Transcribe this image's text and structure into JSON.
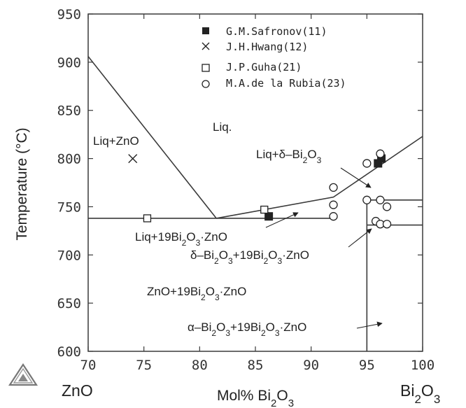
{
  "chart_data": {
    "type": "scatter",
    "title": "",
    "xlabel": "Mol% Bi2O3",
    "ylabel": "Temperature (°C)",
    "xlim": [
      70,
      100
    ],
    "ylim": [
      600,
      950
    ],
    "x_ticks": [
      "70",
      "75",
      "80",
      "85",
      "90",
      "95",
      "100"
    ],
    "y_ticks": [
      "600",
      "650",
      "700",
      "750",
      "800",
      "850",
      "900",
      "950"
    ],
    "components": {
      "left": "ZnO",
      "right": "Bi2O3"
    },
    "grid": false,
    "legend_position": "top-right",
    "series": [
      {
        "name": "G.M.Safronov(11)",
        "marker": "filled-square",
        "points": [
          [
            86.2,
            740
          ],
          [
            96.0,
            795
          ],
          [
            96.3,
            800
          ]
        ]
      },
      {
        "name": "J.H.Hwang(12)",
        "marker": "x",
        "points": [
          [
            74.0,
            800
          ]
        ]
      },
      {
        "name": "J.P.Guha(21)",
        "marker": "open-square",
        "points": [
          [
            75.3,
            738
          ],
          [
            85.8,
            747
          ]
        ]
      },
      {
        "name": "M.A.de la Rubia(23)",
        "marker": "open-circle",
        "points": [
          [
            92,
            770
          ],
          [
            92,
            752
          ],
          [
            92,
            740
          ],
          [
            95,
            795
          ],
          [
            96.2,
            805
          ],
          [
            95,
            757
          ],
          [
            96.2,
            757
          ],
          [
            96.8,
            750
          ],
          [
            95.8,
            735
          ],
          [
            96.2,
            732
          ],
          [
            96.8,
            732
          ]
        ]
      }
    ],
    "boundaries": [
      {
        "name": "liquidus-zno",
        "points": [
          [
            70,
            906
          ],
          [
            81.5,
            738
          ]
        ]
      },
      {
        "name": "liquidus-bi2o3",
        "points": [
          [
            81.5,
            738
          ],
          [
            92,
            760
          ],
          [
            100,
            823
          ]
        ]
      },
      {
        "name": "eutectic-line",
        "points": [
          [
            70,
            738
          ],
          [
            92.2,
            738
          ]
        ]
      },
      {
        "name": "delta-solvus-upper",
        "points": [
          [
            95,
            757
          ],
          [
            100,
            757
          ]
        ]
      },
      {
        "name": "alpha-delta-transition",
        "points": [
          [
            95,
            731
          ],
          [
            100,
            731
          ]
        ]
      },
      {
        "name": "compound-line",
        "points": [
          [
            95,
            600
          ],
          [
            95,
            757
          ]
        ]
      }
    ],
    "regions": [
      {
        "name": "liq",
        "label": "Liq."
      },
      {
        "name": "liq-zno",
        "label": "Liq+ZnO"
      },
      {
        "name": "liq-delta",
        "label": "Liq+δ–Bi2O3"
      },
      {
        "name": "liq-compound",
        "label": "Liq+19Bi2O3·ZnO"
      },
      {
        "name": "delta-compound",
        "label": "δ–Bi2O3+19Bi2O3·ZnO"
      },
      {
        "name": "zno-compound",
        "label": "ZnO+19Bi2O3·ZnO"
      },
      {
        "name": "alpha-compound",
        "label": "α–Bi2O3+19Bi2O3·ZnO"
      }
    ]
  },
  "colors": {
    "line": "#3a3a3a",
    "marker": "#222222"
  }
}
